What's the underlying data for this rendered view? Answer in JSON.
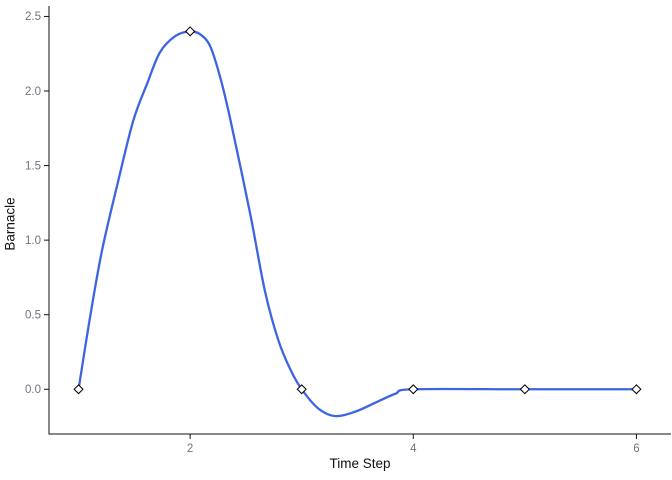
{
  "page": {
    "background": "#ffffff"
  },
  "chart_data": {
    "type": "line",
    "title": "",
    "xlabel": "Time Step",
    "ylabel": "Barnacle",
    "x_tick_labels": [
      "2",
      "4",
      "6"
    ],
    "x_tick_values": [
      2,
      4,
      6
    ],
    "y_tick_labels": [
      "0.0",
      "0.5",
      "1.0",
      "1.5",
      "2.0",
      "2.5"
    ],
    "y_tick_values": [
      0,
      0.5,
      1,
      1.5,
      2,
      2.5
    ],
    "xlim": [
      0.735,
      6.31
    ],
    "ylim": [
      -0.3,
      2.57
    ],
    "grid": false,
    "legend_position": "none",
    "axis": {
      "color": "#111111",
      "tick_label_color": "#6e7380",
      "label_color": "#111111"
    },
    "series": [
      {
        "name": "Barnacle",
        "color": "#3D64E1",
        "line_width": 2.3,
        "curve_style": "smooth-spline",
        "marker": "open-diamond",
        "marker_stroke": "#000000",
        "marker_fill": "#ffffff",
        "x": [
          1,
          2,
          3,
          4,
          5,
          6
        ],
        "y": [
          0,
          2.4,
          0,
          0,
          0,
          0
        ],
        "curve_samples": {
          "x": [
            1.0,
            1.1,
            1.21,
            1.35,
            1.49,
            1.62,
            1.73,
            1.87,
            2.0,
            2.09,
            2.18,
            2.27,
            2.36,
            2.54,
            2.67,
            2.79,
            2.9,
            3.0,
            3.15,
            3.3,
            3.48,
            3.66,
            3.84,
            4.0,
            5.0,
            6.0
          ],
          "y": [
            0.0,
            0.47,
            0.93,
            1.38,
            1.8,
            2.06,
            2.26,
            2.37,
            2.4,
            2.38,
            2.3,
            2.09,
            1.81,
            1.17,
            0.66,
            0.33,
            0.13,
            0.0,
            -0.13,
            -0.18,
            -0.15,
            -0.09,
            -0.03,
            0.0,
            0.0,
            0.0
          ]
        }
      }
    ]
  }
}
